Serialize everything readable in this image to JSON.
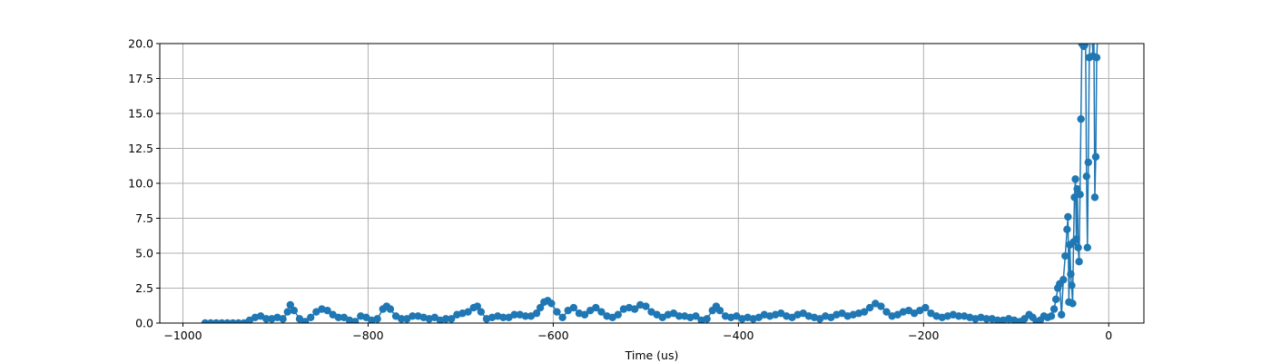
{
  "chart_data": {
    "type": "line",
    "title": "",
    "xlabel": "Time (us)",
    "ylabel": "",
    "xlim": [
      -1025,
      38
    ],
    "ylim": [
      0,
      20
    ],
    "grid": true,
    "x_ticks": [
      -1000,
      -800,
      -600,
      -400,
      -200,
      0
    ],
    "y_ticks": [
      0.0,
      2.5,
      5.0,
      7.5,
      10.0,
      12.5,
      15.0,
      17.5,
      20.0
    ],
    "x_tick_labels": [
      "−1000",
      "−800",
      "−600",
      "−400",
      "−200",
      "0"
    ],
    "y_tick_labels": [
      "0.0",
      "2.5",
      "5.0",
      "7.5",
      "10.0",
      "12.5",
      "15.0",
      "17.5",
      "20.0"
    ],
    "series": [
      {
        "color": "#1f77b4",
        "marker": "circle",
        "points": [
          [
            -976,
            0.0
          ],
          [
            -970,
            0.0
          ],
          [
            -964,
            0.0
          ],
          [
            -958,
            0.0
          ],
          [
            -952,
            0.0
          ],
          [
            -946,
            0.0
          ],
          [
            -940,
            0.0
          ],
          [
            -934,
            0.0
          ],
          [
            -928,
            0.2
          ],
          [
            -922,
            0.4
          ],
          [
            -916,
            0.5
          ],
          [
            -910,
            0.3
          ],
          [
            -904,
            0.3
          ],
          [
            -898,
            0.4
          ],
          [
            -892,
            0.3
          ],
          [
            -887,
            0.8
          ],
          [
            -884,
            1.3
          ],
          [
            -880,
            0.9
          ],
          [
            -874,
            0.3
          ],
          [
            -868,
            0.1
          ],
          [
            -862,
            0.4
          ],
          [
            -856,
            0.8
          ],
          [
            -850,
            1.0
          ],
          [
            -844,
            0.9
          ],
          [
            -838,
            0.6
          ],
          [
            -832,
            0.4
          ],
          [
            -826,
            0.4
          ],
          [
            -820,
            0.2
          ],
          [
            -814,
            0.1
          ],
          [
            -808,
            0.5
          ],
          [
            -802,
            0.4
          ],
          [
            -796,
            0.2
          ],
          [
            -790,
            0.3
          ],
          [
            -784,
            1.0
          ],
          [
            -780,
            1.2
          ],
          [
            -776,
            1.0
          ],
          [
            -770,
            0.5
          ],
          [
            -764,
            0.3
          ],
          [
            -758,
            0.3
          ],
          [
            -752,
            0.5
          ],
          [
            -746,
            0.5
          ],
          [
            -740,
            0.4
          ],
          [
            -734,
            0.3
          ],
          [
            -728,
            0.4
          ],
          [
            -722,
            0.2
          ],
          [
            -716,
            0.3
          ],
          [
            -710,
            0.3
          ],
          [
            -704,
            0.6
          ],
          [
            -698,
            0.7
          ],
          [
            -692,
            0.8
          ],
          [
            -686,
            1.1
          ],
          [
            -682,
            1.2
          ],
          [
            -678,
            0.8
          ],
          [
            -672,
            0.3
          ],
          [
            -666,
            0.4
          ],
          [
            -660,
            0.5
          ],
          [
            -654,
            0.4
          ],
          [
            -648,
            0.4
          ],
          [
            -642,
            0.6
          ],
          [
            -636,
            0.6
          ],
          [
            -630,
            0.5
          ],
          [
            -624,
            0.5
          ],
          [
            -618,
            0.7
          ],
          [
            -614,
            1.1
          ],
          [
            -610,
            1.5
          ],
          [
            -606,
            1.6
          ],
          [
            -602,
            1.4
          ],
          [
            -596,
            0.8
          ],
          [
            -590,
            0.4
          ],
          [
            -584,
            0.9
          ],
          [
            -578,
            1.1
          ],
          [
            -572,
            0.7
          ],
          [
            -566,
            0.6
          ],
          [
            -560,
            0.9
          ],
          [
            -554,
            1.1
          ],
          [
            -548,
            0.8
          ],
          [
            -542,
            0.5
          ],
          [
            -536,
            0.4
          ],
          [
            -530,
            0.6
          ],
          [
            -524,
            1.0
          ],
          [
            -518,
            1.1
          ],
          [
            -512,
            1.0
          ],
          [
            -506,
            1.3
          ],
          [
            -500,
            1.2
          ],
          [
            -494,
            0.8
          ],
          [
            -488,
            0.6
          ],
          [
            -482,
            0.4
          ],
          [
            -476,
            0.6
          ],
          [
            -470,
            0.7
          ],
          [
            -464,
            0.5
          ],
          [
            -458,
            0.5
          ],
          [
            -452,
            0.4
          ],
          [
            -446,
            0.5
          ],
          [
            -440,
            0.2
          ],
          [
            -434,
            0.3
          ],
          [
            -428,
            0.9
          ],
          [
            -424,
            1.2
          ],
          [
            -420,
            0.9
          ],
          [
            -414,
            0.5
          ],
          [
            -408,
            0.4
          ],
          [
            -402,
            0.5
          ],
          [
            -396,
            0.3
          ],
          [
            -390,
            0.4
          ],
          [
            -384,
            0.3
          ],
          [
            -378,
            0.4
          ],
          [
            -372,
            0.6
          ],
          [
            -366,
            0.5
          ],
          [
            -360,
            0.6
          ],
          [
            -354,
            0.7
          ],
          [
            -348,
            0.5
          ],
          [
            -342,
            0.4
          ],
          [
            -336,
            0.6
          ],
          [
            -330,
            0.7
          ],
          [
            -324,
            0.5
          ],
          [
            -318,
            0.4
          ],
          [
            -312,
            0.3
          ],
          [
            -306,
            0.5
          ],
          [
            -300,
            0.4
          ],
          [
            -294,
            0.6
          ],
          [
            -288,
            0.7
          ],
          [
            -282,
            0.5
          ],
          [
            -276,
            0.6
          ],
          [
            -270,
            0.7
          ],
          [
            -264,
            0.8
          ],
          [
            -258,
            1.1
          ],
          [
            -252,
            1.4
          ],
          [
            -246,
            1.2
          ],
          [
            -240,
            0.8
          ],
          [
            -234,
            0.5
          ],
          [
            -228,
            0.6
          ],
          [
            -222,
            0.8
          ],
          [
            -216,
            0.9
          ],
          [
            -210,
            0.7
          ],
          [
            -204,
            0.9
          ],
          [
            -198,
            1.1
          ],
          [
            -192,
            0.7
          ],
          [
            -186,
            0.5
          ],
          [
            -180,
            0.4
          ],
          [
            -174,
            0.5
          ],
          [
            -168,
            0.6
          ],
          [
            -162,
            0.5
          ],
          [
            -156,
            0.5
          ],
          [
            -150,
            0.4
          ],
          [
            -144,
            0.3
          ],
          [
            -138,
            0.4
          ],
          [
            -132,
            0.3
          ],
          [
            -126,
            0.3
          ],
          [
            -120,
            0.2
          ],
          [
            -114,
            0.2
          ],
          [
            -108,
            0.3
          ],
          [
            -102,
            0.2
          ],
          [
            -96,
            0.1
          ],
          [
            -91,
            0.3
          ],
          [
            -86,
            0.6
          ],
          [
            -82,
            0.4
          ],
          [
            -78,
            0.1
          ],
          [
            -74,
            0.2
          ],
          [
            -70,
            0.5
          ],
          [
            -66,
            0.4
          ],
          [
            -62,
            0.5
          ],
          [
            -59,
            1.0
          ],
          [
            -57,
            1.7
          ],
          [
            -55,
            2.5
          ],
          [
            -53,
            2.8
          ],
          [
            -51,
            0.6
          ],
          [
            -49,
            3.1
          ],
          [
            -47,
            4.8
          ],
          [
            -45,
            6.7
          ],
          [
            -44,
            7.6
          ],
          [
            -43,
            1.5
          ],
          [
            -42,
            5.6
          ],
          [
            -41,
            3.5
          ],
          [
            -40,
            2.7
          ],
          [
            -39,
            1.4
          ],
          [
            -38,
            5.8
          ],
          [
            -37,
            9.0
          ],
          [
            -36,
            10.3
          ],
          [
            -35,
            6.0
          ],
          [
            -34,
            9.6
          ],
          [
            -33,
            5.4
          ],
          [
            -32,
            4.4
          ],
          [
            -31,
            9.2
          ],
          [
            -30,
            14.6
          ],
          [
            -29,
            20.0
          ],
          [
            -28,
            20.3
          ],
          [
            -27,
            19.8
          ],
          [
            -26,
            19.9
          ],
          [
            -25,
            20.2
          ],
          [
            -24,
            10.5
          ],
          [
            -23,
            5.4
          ],
          [
            -22,
            11.5
          ],
          [
            -21,
            19.0
          ],
          [
            -20,
            20.4
          ],
          [
            -19,
            21.0
          ],
          [
            -18,
            20.5
          ],
          [
            -17,
            19.1
          ],
          [
            -16,
            20.3
          ],
          [
            -15,
            9.0
          ],
          [
            -14,
            11.9
          ],
          [
            -13,
            19.0
          ],
          [
            -12,
            20.5
          ]
        ]
      }
    ]
  }
}
